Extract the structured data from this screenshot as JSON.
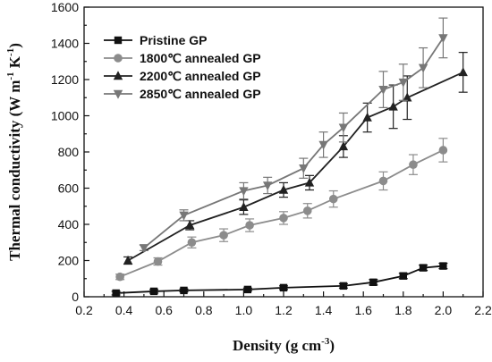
{
  "chart_data": {
    "type": "line",
    "title": "",
    "xlabel": "Density (g cm",
    "xlabel_sup": "-3",
    "xlabel_end": ")",
    "ylabel": "Thermal conductivity (W m",
    "ylabel_sup1": "-1",
    "ylabel_mid": " K",
    "ylabel_sup2": "-1",
    "ylabel_end": ")",
    "xlim": [
      0.2,
      2.2
    ],
    "ylim": [
      0,
      1600
    ],
    "xticks": [
      "0.2",
      "0.4",
      "0.6",
      "0.8",
      "1.0",
      "1.2",
      "1.4",
      "1.6",
      "1.8",
      "2.0",
      "2.2"
    ],
    "yticks": [
      "0",
      "200",
      "400",
      "600",
      "800",
      "1000",
      "1200",
      "1400",
      "1600"
    ],
    "legend_position": "top-left",
    "grid": false,
    "series": [
      {
        "name": "Pristine GP",
        "marker": "square",
        "color": "#111111",
        "x": [
          0.36,
          0.55,
          0.7,
          1.02,
          1.2,
          1.5,
          1.65,
          1.8,
          1.9,
          2.0
        ],
        "y": [
          20,
          30,
          35,
          40,
          50,
          60,
          80,
          115,
          160,
          170
        ],
        "err": [
          10,
          10,
          8,
          8,
          10,
          12,
          15,
          15,
          15,
          15
        ]
      },
      {
        "name": "1800℃ annealed GP",
        "marker": "circle",
        "color": "#8c8c8c",
        "x": [
          0.38,
          0.57,
          0.74,
          0.9,
          1.03,
          1.2,
          1.32,
          1.45,
          1.7,
          1.85,
          2.0
        ],
        "y": [
          110,
          195,
          300,
          340,
          395,
          435,
          475,
          540,
          640,
          730,
          810
        ],
        "err": [
          15,
          20,
          30,
          35,
          35,
          35,
          40,
          45,
          50,
          55,
          65
        ]
      },
      {
        "name": "2200℃ annealed GP",
        "marker": "triangle-up",
        "color": "#222222",
        "x": [
          0.42,
          0.73,
          1.0,
          1.2,
          1.33,
          1.5,
          1.62,
          1.75,
          1.82,
          2.1
        ],
        "y": [
          200,
          395,
          495,
          590,
          630,
          830,
          990,
          1050,
          1100,
          1240
        ],
        "err": [
          20,
          25,
          40,
          40,
          40,
          60,
          80,
          120,
          120,
          110
        ]
      },
      {
        "name": "2850℃ annealed GP",
        "marker": "triangle-down",
        "color": "#777777",
        "x": [
          0.5,
          0.7,
          1.0,
          1.12,
          1.3,
          1.4,
          1.5,
          1.7,
          1.8,
          1.9,
          2.0
        ],
        "y": [
          270,
          450,
          585,
          615,
          710,
          840,
          935,
          1145,
          1185,
          1265,
          1430
        ],
        "err": [
          15,
          30,
          45,
          45,
          55,
          70,
          80,
          100,
          100,
          110,
          110
        ]
      }
    ]
  }
}
